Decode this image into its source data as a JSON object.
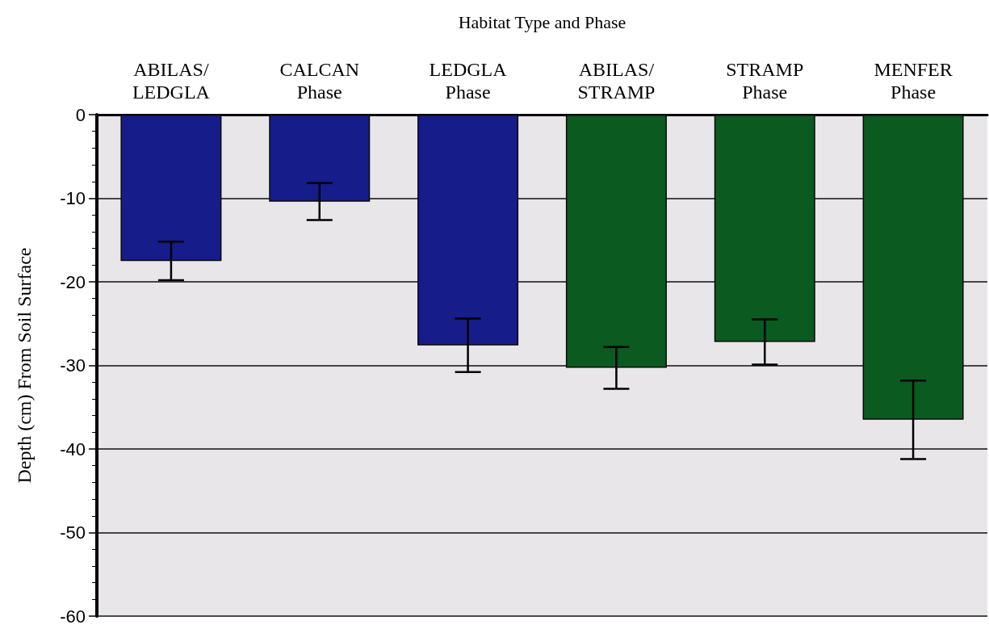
{
  "chart_data": {
    "type": "bar",
    "xlabel": "Habitat Type and Phase",
    "ylabel": "Depth (cm) From Soil Surface",
    "categories": [
      "ABILAS/\nLEDGLA",
      "CALCAN\nPhase",
      "LEDGLA\nPhase",
      "ABILAS/\nSTRAMP",
      "STRAMP\nPhase",
      "MENFER\nPhase"
    ],
    "values": [
      -17.5,
      -10.4,
      -27.6,
      -30.3,
      -27.2,
      -36.5
    ],
    "errors": [
      2.3,
      2.2,
      3.2,
      2.5,
      2.7,
      4.7
    ],
    "colors": [
      "#161c8a",
      "#161c8a",
      "#161c8a",
      "#0b5a20",
      "#0b5a20",
      "#0b5a20"
    ],
    "ylim": [
      -60,
      0
    ],
    "yticks": [
      -60,
      -50,
      -40,
      -30,
      -20,
      -10,
      0
    ],
    "grid": "y"
  }
}
